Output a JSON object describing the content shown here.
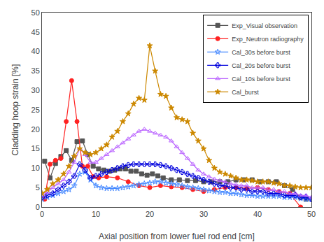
{
  "chart_data": {
    "type": "line",
    "xlabel": "Axial position from lower fuel rod end [cm]",
    "ylabel": "Cladding hoop strain [%]",
    "xlim": [
      0,
      50
    ],
    "ylim": [
      0,
      50
    ],
    "xticks": [
      0,
      10,
      20,
      30,
      40,
      50
    ],
    "yticks": [
      0,
      5,
      10,
      15,
      20,
      25,
      30,
      35,
      40,
      45,
      50
    ],
    "grid": false,
    "legend": "upper right",
    "series": [
      {
        "name": "Exp_Visual observation",
        "color": "#555555",
        "marker": "square",
        "line_style": "solid",
        "x": [
          0.5,
          1.5,
          2.5,
          3.5,
          4.5,
          5.5,
          6.5,
          7.5,
          8.5,
          9.5,
          10.5,
          11.5,
          12.5,
          13.5,
          14.5,
          15.5,
          16.5,
          17.5,
          18.5,
          19.5,
          20.5,
          21.5,
          22.5,
          24.0,
          25.5,
          27.0,
          28.5,
          30.0,
          31.5,
          33.0,
          34.5,
          36.0,
          37.5,
          39.0,
          40.5,
          42.0,
          43.5,
          45.0,
          46.5,
          48.0,
          49.0
        ],
        "values": [
          11.8,
          7.5,
          11.2,
          13.0,
          14.5,
          12.0,
          16.8,
          17.0,
          13.5,
          10.5,
          9.8,
          9.5,
          9.2,
          9.5,
          9.8,
          9.8,
          9.2,
          9.2,
          8.5,
          8.2,
          8.5,
          8.0,
          7.5,
          7.0,
          7.0,
          6.8,
          6.8,
          6.5,
          6.5,
          6.5,
          6.5,
          7.0,
          7.0,
          7.0,
          6.5,
          6.5,
          6.5,
          5.5,
          4.5,
          2.5,
          2.0
        ]
      },
      {
        "name": "Exp_Neutron radiography",
        "color": "#ff2222",
        "marker": "circle",
        "line_style": "solid",
        "x": [
          0.5,
          1.5,
          2.5,
          3.5,
          4.5,
          5.5,
          6.5,
          7.5,
          8.5,
          9.5,
          10.5,
          12.0,
          14.0,
          16.0,
          18.0,
          20.0,
          22.0,
          24.0,
          26.0,
          28.0,
          30.0,
          32.0,
          34.0,
          36.0,
          38.0,
          40.0,
          42.0,
          44.0,
          46.0,
          48.0
        ],
        "values": [
          2.0,
          11.0,
          12.0,
          12.5,
          22.0,
          32.5,
          22.0,
          10.5,
          10.5,
          7.8,
          7.5,
          7.8,
          7.5,
          6.5,
          5.5,
          5.0,
          5.5,
          5.2,
          5.0,
          4.5,
          4.0,
          4.5,
          5.0,
          5.0,
          4.8,
          5.0,
          4.5,
          4.0,
          3.5,
          0.0
        ]
      },
      {
        "name": "Cal_30s before burst",
        "color": "#4488ff",
        "marker": "star-open",
        "line_style": "solid",
        "x": [
          0,
          1,
          2,
          3,
          4,
          5,
          6,
          7,
          8,
          9,
          10,
          11,
          12,
          13,
          14,
          15,
          16,
          17,
          18,
          19,
          20,
          21,
          22,
          23,
          24,
          25,
          26,
          27,
          28,
          29,
          30,
          31,
          32,
          33,
          34,
          35,
          36,
          37,
          38,
          39,
          40,
          41,
          42,
          43,
          44,
          45,
          46,
          47,
          48,
          49,
          50
        ],
        "values": [
          2.0,
          2.5,
          3.0,
          3.5,
          4.0,
          4.5,
          5.5,
          8.5,
          9.0,
          7.0,
          5.5,
          5.0,
          4.8,
          4.8,
          4.8,
          5.0,
          5.2,
          5.5,
          5.8,
          6.0,
          6.2,
          6.5,
          6.5,
          6.2,
          6.0,
          5.8,
          5.5,
          5.2,
          5.0,
          4.8,
          4.5,
          4.2,
          4.0,
          3.8,
          3.8,
          3.5,
          3.5,
          3.2,
          3.0,
          3.0,
          2.8,
          2.8,
          2.8,
          2.8,
          2.8,
          2.5,
          2.5,
          2.5,
          2.2,
          2.0,
          2.0
        ]
      },
      {
        "name": "Cal_20s before burst",
        "color": "#0000dd",
        "marker": "cross-open",
        "line_style": "solid",
        "x": [
          0,
          1,
          2,
          3,
          4,
          5,
          6,
          7,
          8,
          9,
          10,
          11,
          12,
          13,
          14,
          15,
          16,
          17,
          18,
          19,
          20,
          21,
          22,
          23,
          24,
          25,
          26,
          27,
          28,
          29,
          30,
          31,
          32,
          33,
          34,
          35,
          36,
          37,
          38,
          39,
          40,
          41,
          42,
          43,
          44,
          45,
          46,
          47,
          48,
          49,
          50
        ],
        "values": [
          2.5,
          3.0,
          3.5,
          4.5,
          5.5,
          6.5,
          8.0,
          11.0,
          9.5,
          7.5,
          8.0,
          8.5,
          9.0,
          9.5,
          10.0,
          10.5,
          10.8,
          11.0,
          11.0,
          11.0,
          11.0,
          11.0,
          10.8,
          10.5,
          10.0,
          9.5,
          9.0,
          8.5,
          8.0,
          7.5,
          7.0,
          6.5,
          6.0,
          5.5,
          5.5,
          5.0,
          5.0,
          4.5,
          4.5,
          4.0,
          4.0,
          4.0,
          3.5,
          3.5,
          3.5,
          3.0,
          3.0,
          3.0,
          2.5,
          2.5,
          2.0
        ]
      },
      {
        "name": "Cal_10s before burst",
        "color": "#bb66ff",
        "marker": "triangle-up-open",
        "line_style": "solid",
        "x": [
          0,
          1,
          2,
          3,
          4,
          5,
          6,
          7,
          8,
          9,
          10,
          11,
          12,
          13,
          14,
          15,
          16,
          17,
          18,
          19,
          20,
          21,
          22,
          23,
          24,
          25,
          26,
          27,
          28,
          29,
          30,
          31,
          32,
          33,
          34,
          35,
          36,
          37,
          38,
          39,
          40,
          41,
          42,
          43,
          44,
          45,
          46,
          47,
          48,
          49,
          50
        ],
        "values": [
          3.0,
          3.8,
          5.0,
          6.0,
          7.0,
          9.0,
          11.5,
          15.0,
          13.5,
          11.5,
          11.5,
          12.5,
          13.5,
          14.5,
          15.5,
          16.5,
          17.5,
          18.5,
          19.5,
          20.0,
          19.5,
          19.0,
          18.5,
          18.0,
          17.0,
          15.5,
          14.0,
          12.5,
          11.0,
          9.5,
          8.5,
          7.8,
          7.2,
          6.8,
          6.5,
          6.0,
          5.8,
          5.5,
          5.5,
          5.0,
          5.0,
          5.0,
          4.5,
          4.5,
          4.0,
          4.0,
          3.5,
          3.5,
          3.0,
          3.0,
          2.5
        ]
      },
      {
        "name": "Cal_burst",
        "color": "#cc8800",
        "marker": "star",
        "line_style": "solid",
        "x": [
          0,
          1,
          2,
          3,
          4,
          5,
          6,
          7,
          8,
          9,
          10,
          11,
          12,
          13,
          14,
          15,
          16,
          17,
          18,
          19,
          20,
          21,
          22,
          23,
          24,
          25,
          26,
          27,
          28,
          29,
          30,
          31,
          32,
          33,
          34,
          35,
          36,
          37,
          38,
          39,
          40,
          41,
          42,
          43,
          44,
          45,
          46,
          47,
          48,
          49,
          50
        ],
        "values": [
          3.5,
          4.5,
          6.0,
          7.0,
          8.5,
          10.5,
          13.0,
          15.0,
          14.0,
          13.5,
          14.0,
          15.0,
          16.0,
          18.0,
          19.5,
          22.0,
          24.0,
          26.5,
          28.0,
          27.5,
          41.5,
          35.0,
          29.0,
          28.5,
          25.5,
          23.0,
          22.5,
          22.0,
          19.0,
          17.0,
          15.0,
          12.0,
          10.0,
          9.0,
          8.5,
          8.0,
          7.5,
          7.0,
          7.0,
          6.8,
          6.5,
          6.5,
          6.5,
          6.2,
          6.0,
          5.5,
          5.5,
          5.2,
          5.0,
          5.0,
          5.0
        ]
      }
    ]
  }
}
